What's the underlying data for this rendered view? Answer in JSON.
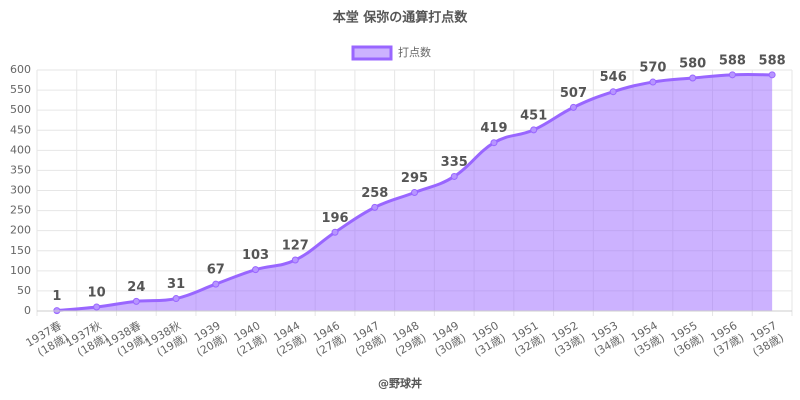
{
  "chart_data": {
    "type": "area",
    "title": "本堂 保弥の通算打点数",
    "categories": [
      [
        "1937春",
        "(18歳)"
      ],
      [
        "1937秋",
        "(18歳)"
      ],
      [
        "1938春",
        "(19歳)"
      ],
      [
        "1938秋",
        "(19歳)"
      ],
      [
        "1939",
        "(20歳)"
      ],
      [
        "1940",
        "(21歳)"
      ],
      [
        "1944",
        "(25歳)"
      ],
      [
        "1946",
        "(27歳)"
      ],
      [
        "1947",
        "(28歳)"
      ],
      [
        "1948",
        "(29歳)"
      ],
      [
        "1949",
        "(30歳)"
      ],
      [
        "1950",
        "(31歳)"
      ],
      [
        "1951",
        "(32歳)"
      ],
      [
        "1952",
        "(33歳)"
      ],
      [
        "1953",
        "(34歳)"
      ],
      [
        "1954",
        "(35歳)"
      ],
      [
        "1955",
        "(36歳)"
      ],
      [
        "1956",
        "(37歳)"
      ],
      [
        "1957",
        "(38歳)"
      ]
    ],
    "series": [
      {
        "name": "打点数",
        "color": "#9966ff",
        "values": [
          1,
          10,
          24,
          31,
          67,
          103,
          127,
          196,
          258,
          295,
          335,
          419,
          451,
          507,
          546,
          570,
          580,
          588,
          588
        ]
      }
    ],
    "ylim": [
      0,
      600
    ],
    "yticks": [
      0,
      50,
      100,
      150,
      200,
      250,
      300,
      350,
      400,
      450,
      500,
      550,
      600
    ],
    "grid": true,
    "footer": "@野球丼"
  }
}
